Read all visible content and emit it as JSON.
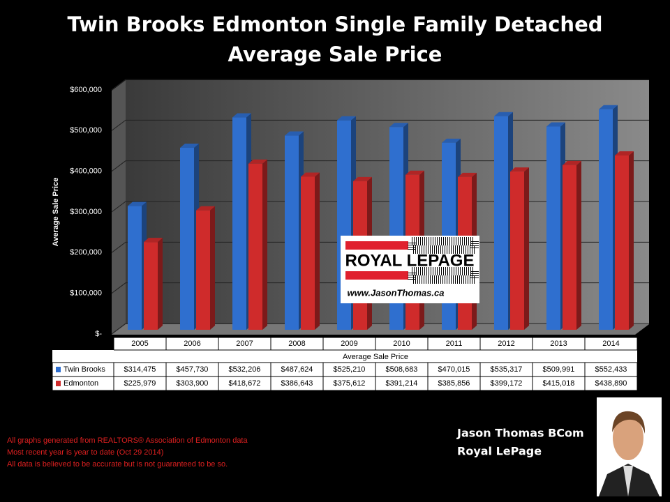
{
  "chart_data": {
    "type": "bar3d",
    "title": "Twin Brooks Edmonton Single Family Detached",
    "subtitle": "Average Sale Price",
    "y_label": "Average Sale Price",
    "x_label": "Average Sale Price",
    "categories": [
      "2005",
      "2006",
      "2007",
      "2008",
      "2009",
      "2010",
      "2011",
      "2012",
      "2013",
      "2014"
    ],
    "series": [
      {
        "name": "Twin Brooks",
        "color": "#2f6fcf",
        "values": [
          314475,
          457730,
          532206,
          487624,
          525210,
          508683,
          470015,
          535317,
          509991,
          552433
        ],
        "value_labels": [
          "$314,475",
          "$457,730",
          "$532,206",
          "$487,624",
          "$525,210",
          "$508,683",
          "$470,015",
          "$535,317",
          "$509,991",
          "$552,433"
        ]
      },
      {
        "name": "Edmonton",
        "color": "#cf2b2b",
        "values": [
          225979,
          303900,
          418672,
          386643,
          375612,
          391214,
          385856,
          399172,
          415018,
          438890
        ],
        "value_labels": [
          "$225,979",
          "$303,900",
          "$418,672",
          "$386,643",
          "$375,612",
          "$391,214",
          "$385,856",
          "$399,172",
          "$415,018",
          "$438,890"
        ]
      }
    ],
    "ylim": [
      0,
      600000
    ],
    "yticks": [
      {
        "value": 0,
        "label": "$-"
      },
      {
        "value": 100000,
        "label": "$100,000"
      },
      {
        "value": 200000,
        "label": "$200,000"
      },
      {
        "value": 300000,
        "label": "$300,000"
      },
      {
        "value": 400000,
        "label": "$400,000"
      },
      {
        "value": 500000,
        "label": "$500,000"
      },
      {
        "value": 600000,
        "label": "$600,000"
      }
    ],
    "grid": true
  },
  "logo": {
    "brand": "ROYAL LEPAGE",
    "url": "www.JasonThomas.ca"
  },
  "author": {
    "name": "Jason Thomas BCom",
    "company": "Royal LePage"
  },
  "footnotes": [
    "All graphs generated from REALTORS® Association of Edmonton data",
    "Most recent year is year to date (Oct 29 2014)",
    "All data is believed to be accurate but is not guaranteed to be so."
  ]
}
